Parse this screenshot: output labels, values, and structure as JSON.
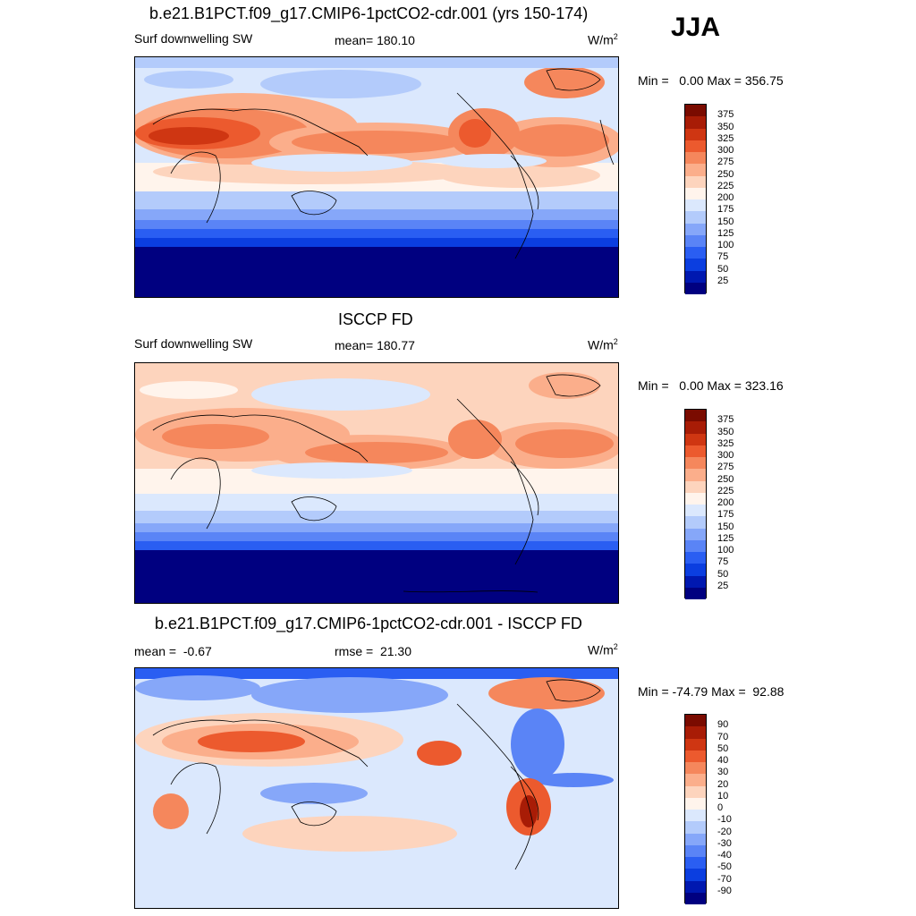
{
  "season": "JJA",
  "panels": [
    {
      "title": "b.e21.B1PCT.f09_g17.CMIP6-1pctCO2-cdr.001 (yrs 150-174)",
      "left_label": "Surf downwelling SW",
      "center_label": "mean= 180.10",
      "units_base": "W/m",
      "units_exp": "2",
      "minmax": "Min =   0.00 Max = 356.75",
      "colorbar_labels": [
        "375",
        "350",
        "325",
        "300",
        "275",
        "250",
        "225",
        "200",
        "175",
        "150",
        "125",
        "100",
        "75",
        "50",
        "25"
      ]
    },
    {
      "title": "ISCCP FD",
      "left_label": "Surf downwelling SW",
      "center_label": "mean= 180.77",
      "units_base": "W/m",
      "units_exp": "2",
      "minmax": "Min =   0.00 Max = 323.16",
      "colorbar_labels": [
        "375",
        "350",
        "325",
        "300",
        "275",
        "250",
        "225",
        "200",
        "175",
        "150",
        "125",
        "100",
        "75",
        "50",
        "25"
      ]
    },
    {
      "title": "b.e21.B1PCT.f09_g17.CMIP6-1pctCO2-cdr.001 - ISCCP FD",
      "left_label": "mean =  -0.67",
      "center_label": "rmse =  21.30",
      "units_base": "W/m",
      "units_exp": "2",
      "minmax": "Min = -74.79 Max =  92.88",
      "colorbar_labels": [
        "90",
        "70",
        "50",
        "40",
        "30",
        "20",
        "10",
        "0",
        "-10",
        "-20",
        "-30",
        "-40",
        "-50",
        "-70",
        "-90"
      ]
    }
  ],
  "colors": {
    "levels": [
      "#000080",
      "#0018b0",
      "#0b3ee0",
      "#2a5ef2",
      "#5a84f6",
      "#86a7f9",
      "#b3cbfb",
      "#dbe8fd",
      "#fff4ec",
      "#fdd4bd",
      "#fbae8b",
      "#f5875c",
      "#ec5a2e",
      "#cf3612",
      "#a81c06",
      "#7a0b00"
    ]
  }
}
